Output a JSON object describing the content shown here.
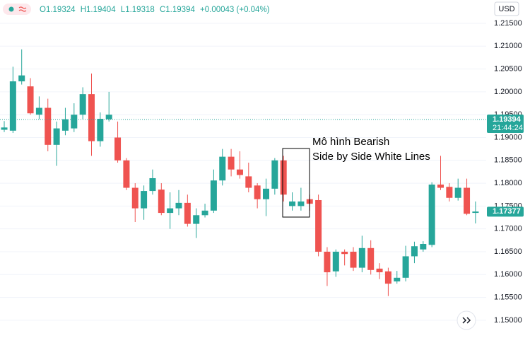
{
  "chart_data": {
    "type": "candlestick",
    "header": {
      "open": "O1.19324",
      "high": "H1.19404",
      "low": "L1.19318",
      "close": "C1.19394",
      "change": "+0.00043 (+0.04%)"
    },
    "currency": "USD",
    "annotation": [
      "Mô hình Bearish",
      "Side by Side White Lines"
    ],
    "last_price": 1.19394,
    "countdown": "21:44:24",
    "marker_price": 1.17377,
    "up_color": "#26a69a",
    "down_color": "#ef5350",
    "open": [
      1.1917,
      1.1915,
      1.2023,
      1.2012,
      1.195,
      1.1965,
      1.1884,
      1.1915,
      1.192,
      1.195,
      1.1995,
      1.1892,
      1.194,
      1.19,
      1.185,
      1.179,
      1.1745,
      1.1783,
      1.1786,
      1.1735,
      1.1745,
      1.1757,
      1.1711,
      1.173,
      1.174,
      1.1806,
      1.1858,
      1.183,
      1.1815,
      1.1795,
      1.1765,
      1.1788,
      1.185,
      1.175,
      1.175,
      1.1765,
      1.1763,
      1.165,
      1.1607,
      1.165,
      1.165,
      1.1615,
      1.1658,
      1.1613,
      1.1607,
      1.1585,
      1.1593,
      1.164,
      1.1655,
      1.1665,
      1.1797,
      1.1792,
      1.1768,
      1.179,
      1.1735
    ],
    "high": [
      1.1936,
      1.2055,
      1.2093,
      1.203,
      1.199,
      1.1985,
      1.1935,
      1.1965,
      1.1975,
      1.201,
      1.204,
      1.1955,
      1.2,
      1.1935,
      1.1855,
      1.18,
      1.1795,
      1.183,
      1.18,
      1.178,
      1.1785,
      1.1775,
      1.1745,
      1.1755,
      1.183,
      1.1875,
      1.1875,
      1.187,
      1.1845,
      1.18,
      1.181,
      1.1855,
      1.186,
      1.178,
      1.179,
      1.1775,
      1.1775,
      1.166,
      1.1655,
      1.1655,
      1.166,
      1.1685,
      1.1675,
      1.1625,
      1.1615,
      1.1608,
      1.1663,
      1.1672,
      1.1673,
      1.1802,
      1.186,
      1.18,
      1.181,
      1.181,
      1.176
    ],
    "low": [
      1.1912,
      1.191,
      1.2016,
      1.195,
      1.194,
      1.187,
      1.1838,
      1.1905,
      1.1912,
      1.194,
      1.186,
      1.188,
      1.1935,
      1.1845,
      1.1785,
      1.1715,
      1.172,
      1.1775,
      1.173,
      1.17,
      1.173,
      1.1705,
      1.168,
      1.1725,
      1.1735,
      1.1795,
      1.1815,
      1.181,
      1.178,
      1.1745,
      1.1728,
      1.1775,
      1.176,
      1.174,
      1.174,
      1.174,
      1.164,
      1.1575,
      1.1595,
      1.162,
      1.1608,
      1.1605,
      1.16,
      1.159,
      1.1553,
      1.158,
      1.1585,
      1.1625,
      1.165,
      1.166,
      1.1785,
      1.176,
      1.1762,
      1.173,
      1.1712
    ],
    "close": [
      1.1922,
      1.2023,
      1.2036,
      1.1953,
      1.1965,
      1.1884,
      1.192,
      1.194,
      1.195,
      1.1995,
      1.1892,
      1.1941,
      1.195,
      1.185,
      1.179,
      1.1745,
      1.1783,
      1.1811,
      1.1735,
      1.1745,
      1.1757,
      1.1711,
      1.173,
      1.174,
      1.1806,
      1.1858,
      1.183,
      1.1818,
      1.179,
      1.1765,
      1.1788,
      1.185,
      1.1775,
      1.176,
      1.176,
      1.1755,
      1.165,
      1.1605,
      1.165,
      1.1645,
      1.1615,
      1.1658,
      1.161,
      1.1605,
      1.158,
      1.1593,
      1.164,
      1.1662,
      1.1667,
      1.1797,
      1.179,
      1.1768,
      1.179,
      1.1733,
      1.1738
    ],
    "ylim": [
      1.14611,
      1.22011
    ],
    "yticks": [
      {
        "value": 1.215,
        "label": "1.21500"
      },
      {
        "value": 1.21,
        "label": "1.21000"
      },
      {
        "value": 1.205,
        "label": "1.20500"
      },
      {
        "value": 1.2,
        "label": "1.20000"
      },
      {
        "value": 1.195,
        "label": "1.19500"
      },
      {
        "value": 1.19,
        "label": "1.19000"
      },
      {
        "value": 1.185,
        "label": "1.18500"
      },
      {
        "value": 1.18,
        "label": "1.18000"
      },
      {
        "value": 1.175,
        "label": "1.17500"
      },
      {
        "value": 1.17,
        "label": "1.17000"
      },
      {
        "value": 1.165,
        "label": "1.16500"
      },
      {
        "value": 1.16,
        "label": "1.16000"
      },
      {
        "value": 1.155,
        "label": "1.15500"
      },
      {
        "value": 1.15,
        "label": "1.15000"
      }
    ],
    "grid": true
  }
}
